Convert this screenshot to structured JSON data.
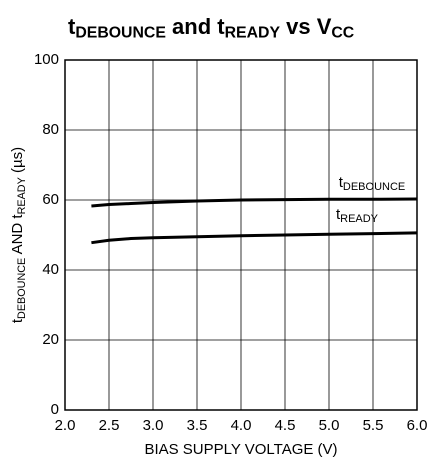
{
  "chart_data": {
    "type": "line",
    "title": [
      "t",
      "DEBOUNCE",
      " and t",
      "READY",
      " vs V",
      "CC"
    ],
    "xlabel": "BIAS SUPPLY VOLTAGE (V)",
    "ylabel": [
      "t",
      "DEBOUNCE",
      " AND t",
      "READY",
      " (µs)"
    ],
    "x": [
      2.3,
      2.5,
      2.75,
      3.0,
      3.5,
      4.0,
      4.5,
      5.0,
      5.5,
      6.0
    ],
    "series": [
      {
        "name": "tDEBOUNCE",
        "color": "#000000",
        "values": [
          58.3,
          58.7,
          59.0,
          59.3,
          59.7,
          60.0,
          60.1,
          60.2,
          60.2,
          60.3
        ]
      },
      {
        "name": "tREADY",
        "color": "#000000",
        "values": [
          47.8,
          48.5,
          49.0,
          49.2,
          49.5,
          49.8,
          50.0,
          50.2,
          50.4,
          50.6
        ]
      }
    ],
    "xlim": [
      2.0,
      6.0
    ],
    "xticks": [
      {
        "value": 2,
        "label": "2.0"
      },
      {
        "value": 2.5,
        "label": "2.5"
      },
      {
        "value": 3,
        "label": "3.0"
      },
      {
        "value": 3.5,
        "label": "3.5"
      },
      {
        "value": 4,
        "label": "4.0"
      },
      {
        "value": 4.5,
        "label": "4.5"
      },
      {
        "value": 5,
        "label": "5.0"
      },
      {
        "value": 5.5,
        "label": "5.5"
      },
      {
        "value": 6,
        "label": "6.0"
      }
    ],
    "ylim": [
      0,
      100
    ],
    "yticks": [
      0,
      20,
      40,
      60,
      80,
      100
    ],
    "grid": true
  }
}
